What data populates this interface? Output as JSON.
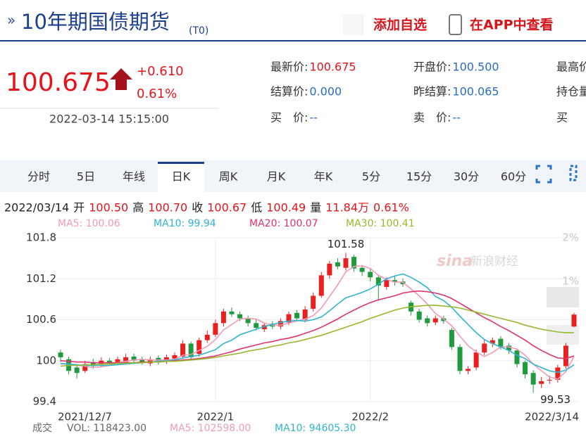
{
  "header": {
    "title": "10年期国债期货",
    "suffix": "(T0)",
    "add_watchlist": "添加自选",
    "open_app": "在APP中查看"
  },
  "quote": {
    "price": "100.675",
    "change": "+0.610",
    "change_pct": "0.61%",
    "datetime": "2022-03-14 15:15:00"
  },
  "quote_info": [
    [
      {
        "label": "最新价:",
        "value": "100.675"
      },
      {
        "label": "开盘价:",
        "value": "100.500"
      },
      {
        "label": "最高价"
      }
    ],
    [
      {
        "label": "结算价:",
        "value": "0.000"
      },
      {
        "label": "昨结算:",
        "value": "100.065"
      },
      {
        "label": "持仓量"
      }
    ],
    [
      {
        "label": "买　价:",
        "value": "--"
      },
      {
        "label": "卖　价:",
        "value": "--"
      },
      {
        "label": "买"
      }
    ]
  ],
  "tabs": {
    "items": [
      "分时",
      "5日",
      "年线",
      "日K",
      "周K",
      "月K",
      "年K",
      "5分",
      "15分",
      "30分",
      "60分"
    ],
    "active": 3
  },
  "quote_line": {
    "date": "2022/03/14",
    "items": [
      {
        "label": "开",
        "value": "100.50"
      },
      {
        "label": "高",
        "value": "100.70"
      },
      {
        "label": "收",
        "value": "100.67"
      },
      {
        "label": "低",
        "value": "100.49"
      },
      {
        "label": "量",
        "value": "11.84万"
      }
    ],
    "change": "0.61%"
  },
  "volume_legend": {
    "label": "成交",
    "vol": "VOL: 118423.00",
    "ma5": "MA5: 102598.00",
    "ma10": "MA10: 94605.30"
  },
  "watermark": {
    "logo": "sina",
    "text": "新浪财经"
  },
  "chart_data": {
    "type": "candlestick",
    "up_color": "#e8211f",
    "down_color": "#1f9a3c",
    "categories": [
      "2021/12/7",
      null,
      null,
      null,
      null,
      null,
      null,
      null,
      null,
      null,
      null,
      null,
      null,
      null,
      null,
      null,
      null,
      null,
      null,
      "2022/1",
      null,
      null,
      null,
      null,
      null,
      null,
      null,
      null,
      null,
      null,
      null,
      null,
      null,
      null,
      null,
      null,
      null,
      null,
      "2022/2",
      null,
      null,
      null,
      null,
      null,
      null,
      null,
      null,
      null,
      null,
      null,
      null,
      null,
      null,
      null,
      null,
      null,
      null,
      null,
      null,
      null,
      null,
      null,
      null,
      "2022/3/14"
    ],
    "open": [
      100.12,
      100.02,
      99.9,
      99.85,
      99.98,
      99.94,
      100.0,
      99.98,
      99.98,
      100.06,
      100.02,
      99.96,
      100.04,
      99.99,
      100.03,
      100.06,
      100.25,
      100.1,
      100.3,
      100.38,
      100.55,
      100.72,
      100.68,
      100.62,
      100.55,
      100.46,
      100.54,
      100.5,
      100.56,
      100.7,
      100.6,
      100.76,
      100.95,
      101.25,
      101.44,
      101.36,
      101.52,
      101.36,
      101.3,
      101.22,
      101.08,
      101.18,
      101.16,
      100.85,
      100.72,
      100.62,
      100.56,
      100.62,
      100.45,
      100.2,
      99.85,
      99.9,
      100.12,
      100.25,
      100.32,
      100.22,
      100.15,
      99.98,
      99.82,
      99.66,
      99.72,
      99.72,
      99.92,
      100.5
    ],
    "high": [
      100.16,
      100.06,
      99.95,
      100.0,
      100.03,
      100.05,
      100.04,
      100.06,
      100.1,
      100.1,
      100.06,
      100.06,
      100.08,
      100.09,
      100.12,
      100.3,
      100.28,
      100.34,
      100.44,
      100.6,
      100.76,
      100.78,
      100.72,
      100.66,
      100.6,
      100.56,
      100.58,
      100.62,
      100.72,
      100.74,
      100.8,
      101.0,
      101.3,
      101.46,
      101.5,
      101.58,
      101.55,
      101.4,
      101.34,
      101.26,
      101.22,
      101.24,
      101.2,
      100.88,
      100.76,
      100.66,
      100.66,
      100.66,
      100.48,
      100.24,
      99.92,
      100.16,
      100.3,
      100.34,
      100.36,
      100.26,
      100.18,
      100.0,
      99.86,
      99.76,
      99.78,
      99.94,
      100.26,
      100.7
    ],
    "low": [
      99.98,
      99.8,
      99.74,
      99.82,
      99.88,
      99.9,
      99.92,
      99.94,
      99.95,
      99.96,
      99.94,
      99.92,
      99.94,
      99.95,
      100.0,
      100.03,
      100.02,
      100.06,
      100.26,
      100.35,
      100.5,
      100.64,
      100.58,
      100.5,
      100.44,
      100.42,
      100.46,
      100.46,
      100.52,
      100.58,
      100.56,
      100.72,
      100.92,
      101.2,
      101.34,
      101.32,
      101.3,
      101.24,
      101.16,
      100.9,
      101.04,
      101.1,
      101.08,
      100.66,
      100.56,
      100.5,
      100.52,
      100.54,
      100.16,
      99.8,
      99.8,
      99.86,
      100.08,
      100.2,
      100.16,
      100.1,
      99.9,
      99.74,
      99.53,
      99.6,
      99.66,
      99.68,
      99.88,
      100.49
    ],
    "close": [
      100.05,
      99.85,
      99.82,
      99.95,
      99.92,
      100.0,
      99.96,
      100.02,
      100.05,
      100.0,
      99.98,
      100.02,
      99.98,
      100.05,
      100.08,
      100.25,
      100.05,
      100.3,
      100.38,
      100.55,
      100.72,
      100.68,
      100.62,
      100.55,
      100.48,
      100.52,
      100.5,
      100.58,
      100.68,
      100.62,
      100.75,
      100.95,
      101.25,
      101.42,
      101.38,
      101.5,
      101.35,
      101.3,
      101.22,
      101.1,
      101.18,
      101.15,
      101.12,
      100.72,
      100.6,
      100.55,
      100.62,
      100.58,
      100.2,
      99.85,
      99.88,
      100.12,
      100.25,
      100.3,
      100.2,
      100.15,
      99.95,
      99.8,
      99.65,
      99.7,
      99.72,
      99.9,
      100.22,
      100.675
    ],
    "max_label": "101.58",
    "min_label": "99.53",
    "series": [
      {
        "name": "MA5: 100.06",
        "color": "#f19ab9",
        "values": [
          99.95,
          99.95,
          99.93,
          99.92,
          99.9,
          99.91,
          99.93,
          99.97,
          99.99,
          100.01,
          100.02,
          100.01,
          100.01,
          100.01,
          100.02,
          100.08,
          100.09,
          100.15,
          100.21,
          100.31,
          100.45,
          100.53,
          100.61,
          100.62,
          100.61,
          100.55,
          100.52,
          100.52,
          100.55,
          100.58,
          100.61,
          100.66,
          100.77,
          100.94,
          101.11,
          101.3,
          101.38,
          101.39,
          101.35,
          101.25,
          101.19,
          101.15,
          101.15,
          101.05,
          100.95,
          100.83,
          100.69,
          100.61,
          100.51,
          100.36,
          100.22,
          100.13,
          100.06,
          100.12,
          100.2,
          100.2,
          100.17,
          100.08,
          99.95,
          99.85,
          99.76,
          99.73,
          99.84,
          100.06
        ]
      },
      {
        "name": "MA10: 99.94",
        "color": "#2fb5cf",
        "values": [
          99.96,
          99.95,
          99.94,
          99.93,
          99.93,
          99.93,
          99.93,
          99.94,
          99.95,
          99.96,
          99.97,
          99.98,
          99.99,
          100.0,
          100.01,
          100.04,
          100.06,
          100.08,
          100.12,
          100.16,
          100.25,
          100.3,
          100.38,
          100.42,
          100.46,
          100.5,
          100.53,
          100.56,
          100.58,
          100.59,
          100.58,
          100.6,
          100.64,
          100.73,
          100.83,
          100.92,
          100.96,
          101.0,
          101.05,
          101.12,
          101.2,
          101.24,
          101.27,
          101.22,
          101.15,
          101.07,
          100.94,
          100.88,
          100.78,
          100.65,
          100.53,
          100.41,
          100.31,
          100.25,
          100.2,
          100.15,
          100.08,
          100.03,
          99.95,
          99.9,
          99.85,
          99.83,
          99.86,
          99.94
        ]
      },
      {
        "name": "MA20: 100.07",
        "color": "#e2336f",
        "values": [
          100.0,
          99.99,
          99.98,
          99.98,
          99.97,
          99.97,
          99.97,
          99.97,
          99.97,
          99.97,
          99.98,
          99.98,
          99.98,
          99.99,
          100.0,
          100.01,
          100.02,
          100.03,
          100.05,
          100.07,
          100.1,
          100.13,
          100.17,
          100.2,
          100.23,
          100.26,
          100.28,
          100.31,
          100.33,
          100.36,
          100.4,
          100.44,
          100.49,
          100.55,
          100.61,
          100.68,
          100.74,
          100.8,
          100.85,
          100.89,
          100.92,
          100.95,
          100.99,
          101.01,
          101.02,
          101.01,
          100.99,
          100.96,
          100.91,
          100.84,
          100.77,
          100.7,
          100.63,
          100.57,
          100.5,
          100.44,
          100.37,
          100.3,
          100.22,
          100.15,
          100.09,
          100.04,
          100.03,
          100.07
        ]
      },
      {
        "name": "MA30: 100.41",
        "color": "#95b92c",
        "values": [
          99.92,
          99.93,
          99.93,
          99.94,
          99.94,
          99.95,
          99.95,
          99.96,
          99.96,
          99.97,
          99.97,
          99.98,
          99.98,
          99.99,
          99.99,
          100.0,
          100.01,
          100.02,
          100.03,
          100.05,
          100.07,
          100.09,
          100.11,
          100.14,
          100.16,
          100.18,
          100.21,
          100.23,
          100.26,
          100.28,
          100.31,
          100.34,
          100.37,
          100.41,
          100.45,
          100.49,
          100.53,
          100.57,
          100.62,
          100.66,
          100.7,
          100.74,
          100.77,
          100.79,
          100.8,
          100.81,
          100.81,
          100.8,
          100.79,
          100.77,
          100.74,
          100.71,
          100.68,
          100.65,
          100.62,
          100.59,
          100.56,
          100.52,
          100.49,
          100.46,
          100.44,
          100.42,
          100.41,
          100.41
        ]
      }
    ],
    "ylim": [
      99.4,
      101.8
    ],
    "yticks": [
      99.4,
      100,
      100.6,
      101.2,
      101.8
    ],
    "y2lim": [
      -1.76,
      2
    ],
    "y2ticks": [
      {
        "value": 2,
        "label": "2%"
      },
      {
        "value": 1,
        "label": "1%"
      }
    ],
    "grid": true
  }
}
